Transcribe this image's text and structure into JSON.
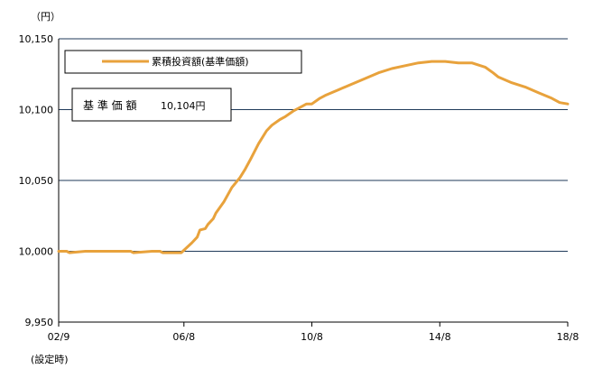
{
  "chart_data": {
    "type": "line",
    "unit_label": "（円）",
    "y_ticks": [
      "10,150",
      "10,100",
      "10,050",
      "10,000",
      "9,950"
    ],
    "y_tick_values": [
      10150,
      10100,
      10050,
      10000,
      9950
    ],
    "ylim": [
      9950,
      10150
    ],
    "x_ticks": [
      "02/9",
      "06/8",
      "10/8",
      "14/8",
      "18/8"
    ],
    "x_tick_values": [
      0,
      47,
      95,
      143,
      191
    ],
    "x_sub_label": "(設定時)",
    "grid": true,
    "legend": {
      "position": "top-left",
      "label": "累積投資額(基準価額)"
    },
    "nav_box": {
      "label": "基 準 価 額",
      "value": "10,104円"
    },
    "series": [
      {
        "name": "累積投資額(基準価額)",
        "color": "#E8A23C",
        "x": [
          0,
          3,
          4,
          10,
          20,
          27,
          28,
          35,
          38,
          39,
          45,
          46,
          50,
          52,
          53,
          55,
          56,
          58,
          59,
          62,
          65,
          68,
          70,
          72,
          75,
          78,
          80,
          83,
          85,
          88,
          90,
          93,
          95,
          98,
          100,
          105,
          110,
          115,
          120,
          125,
          130,
          135,
          140,
          143,
          145,
          150,
          155,
          160,
          163,
          165,
          170,
          175,
          180,
          185,
          188,
          191
        ],
        "y": [
          10000,
          10000,
          9999,
          10000,
          10000,
          10000,
          9999,
          10000,
          10000,
          9999,
          9999,
          9999,
          10006,
          10010,
          10015,
          10016,
          10019,
          10023,
          10027,
          10035,
          10045,
          10052,
          10058,
          10065,
          10076,
          10085,
          10089,
          10093,
          10095,
          10099,
          10101,
          10104,
          10104,
          10108,
          10110,
          10114,
          10118,
          10122,
          10126,
          10129,
          10131,
          10133,
          10134,
          10134,
          10134,
          10133,
          10133,
          10130,
          10126,
          10123,
          10119,
          10116,
          10112,
          10108,
          10105,
          10104
        ]
      }
    ]
  }
}
